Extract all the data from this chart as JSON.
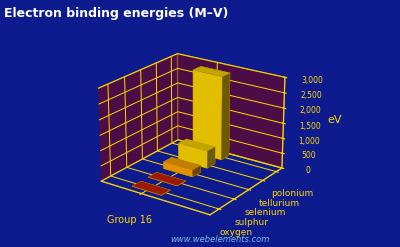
{
  "title": "Electron binding energies (M–V)",
  "elements": [
    "oxygen",
    "sulphur",
    "selenium",
    "tellurium",
    "polonium"
  ],
  "values": [
    7,
    8,
    229,
    582,
    2798
  ],
  "group_label": "Group 16",
  "ylabel": "eV",
  "ylim": [
    0,
    3000
  ],
  "yticks": [
    0,
    500,
    1000,
    1500,
    2000,
    2500,
    3000
  ],
  "ytick_labels": [
    "0",
    "500",
    "1,000",
    "1,500",
    "2,000",
    "2,500",
    "3,000"
  ],
  "background_color": "#0d1b8e",
  "bar_color_main": "#FFD700",
  "bar_color_small": "#FF8C00",
  "bar_color_tiny": "#CC2200",
  "platform_color": "#8B0000",
  "grid_color": "#FFD700",
  "title_color": "#FFFFFF",
  "label_color": "#FFD700",
  "watermark": "www.webelements.com",
  "title_fontsize": 9,
  "elev": 22,
  "azim": -55
}
